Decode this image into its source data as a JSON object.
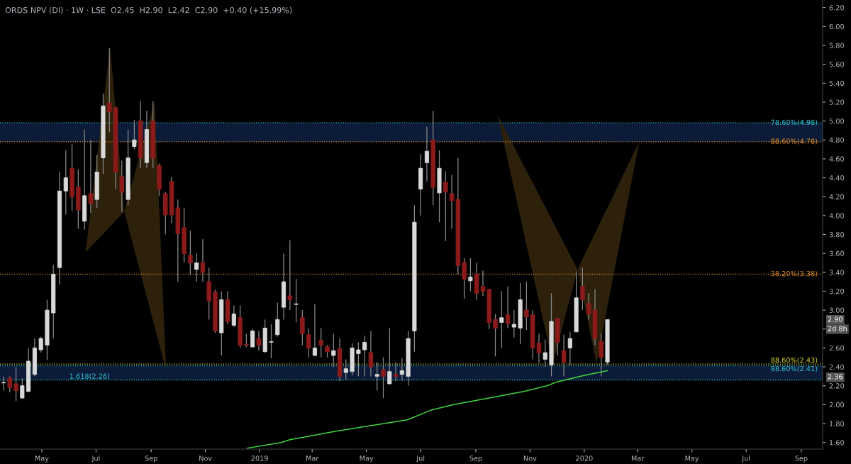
{
  "chart_data": {
    "type": "candlestick",
    "title": "ORDS NPV (DI) · 1W · LSE  O2.45  H2.90  L2.42  C2.90  +0.40 (+15.99%)",
    "xlim": [
      "2018-03-15",
      "2020-09-25"
    ],
    "ylim": [
      1.53,
      6.28
    ],
    "xticks": [
      {
        "value": "2018-05-01",
        "label": "May"
      },
      {
        "value": "2018-07-01",
        "label": "Jul"
      },
      {
        "value": "2018-09-01",
        "label": "Sep"
      },
      {
        "value": "2018-11-01",
        "label": "Nov"
      },
      {
        "value": "2019-01-01",
        "label": "2019"
      },
      {
        "value": "2019-03-01",
        "label": "Mar"
      },
      {
        "value": "2019-05-01",
        "label": "May"
      },
      {
        "value": "2019-07-01",
        "label": "Jul"
      },
      {
        "value": "2019-09-01",
        "label": "Sep"
      },
      {
        "value": "2019-11-01",
        "label": "Nov"
      },
      {
        "value": "2020-01-01",
        "label": "2020"
      },
      {
        "value": "2020-03-01",
        "label": "Mar"
      },
      {
        "value": "2020-05-01",
        "label": "May"
      },
      {
        "value": "2020-07-01",
        "label": "Jul"
      },
      {
        "value": "2020-09-01",
        "label": "Sep"
      }
    ],
    "yticks": [
      {
        "value": 1.6,
        "label": "1.60"
      },
      {
        "value": 1.8,
        "label": "1.80"
      },
      {
        "value": 2.0,
        "label": "2.00"
      },
      {
        "value": 2.2,
        "label": "2.20"
      },
      {
        "value": 2.4,
        "label": "2.40"
      },
      {
        "value": 2.6,
        "label": "2.60"
      },
      {
        "value": 2.8,
        "label": null
      },
      {
        "value": 3.0,
        "label": "3.00"
      },
      {
        "value": 3.2,
        "label": "3.20"
      },
      {
        "value": 3.4,
        "label": "3.40"
      },
      {
        "value": 3.6,
        "label": "3.60"
      },
      {
        "value": 3.8,
        "label": "3.80"
      },
      {
        "value": 4.0,
        "label": "4.00"
      },
      {
        "value": 4.2,
        "label": "4.20"
      },
      {
        "value": 4.4,
        "label": "4.40"
      },
      {
        "value": 4.6,
        "label": "4.60"
      },
      {
        "value": 4.8,
        "label": "4.80"
      },
      {
        "value": 5.0,
        "label": "5.00"
      },
      {
        "value": 5.2,
        "label": "5.20"
      },
      {
        "value": 5.4,
        "label": "5.40"
      },
      {
        "value": 5.6,
        "label": "5.60"
      },
      {
        "value": 5.8,
        "label": "5.80"
      },
      {
        "value": 6.0,
        "label": "6.00"
      },
      {
        "value": 6.2,
        "label": "6.20"
      }
    ],
    "series": [
      {
        "type": "candlestick",
        "x": [
          "2018-03-19",
          "2018-03-26",
          "2018-04-02",
          "2018-04-09",
          "2018-04-16",
          "2018-04-23",
          "2018-04-30",
          "2018-05-07",
          "2018-05-14",
          "2018-05-21",
          "2018-05-28",
          "2018-06-04",
          "2018-06-11",
          "2018-06-18",
          "2018-06-25",
          "2018-07-02",
          "2018-07-09",
          "2018-07-16",
          "2018-07-23",
          "2018-07-30",
          "2018-08-06",
          "2018-08-13",
          "2018-08-20",
          "2018-08-27",
          "2018-09-03",
          "2018-09-10",
          "2018-09-17",
          "2018-09-24",
          "2018-10-01",
          "2018-10-08",
          "2018-10-15",
          "2018-10-22",
          "2018-10-29",
          "2018-11-05",
          "2018-11-12",
          "2018-11-19",
          "2018-11-26",
          "2018-12-03",
          "2018-12-10",
          "2018-12-17",
          "2018-12-24",
          "2018-12-31",
          "2019-01-07",
          "2019-01-14",
          "2019-01-21",
          "2019-01-28",
          "2019-02-04",
          "2019-02-11",
          "2019-02-18",
          "2019-02-25",
          "2019-03-04",
          "2019-03-11",
          "2019-03-18",
          "2019-03-25",
          "2019-04-01",
          "2019-04-08",
          "2019-04-15",
          "2019-04-22",
          "2019-04-29",
          "2019-05-06",
          "2019-05-13",
          "2019-05-20",
          "2019-05-27",
          "2019-06-03",
          "2019-06-10",
          "2019-06-17",
          "2019-06-24",
          "2019-07-01",
          "2019-07-08",
          "2019-07-15",
          "2019-07-22",
          "2019-07-29",
          "2019-08-05",
          "2019-08-12",
          "2019-08-19",
          "2019-08-26",
          "2019-09-02",
          "2019-09-09",
          "2019-09-16",
          "2019-09-23",
          "2019-09-30",
          "2019-10-07",
          "2019-10-14",
          "2019-10-21",
          "2019-10-28",
          "2019-11-04",
          "2019-11-11",
          "2019-11-18",
          "2019-11-25",
          "2019-12-02",
          "2019-12-09",
          "2019-12-16",
          "2019-12-23",
          "2019-12-30",
          "2020-01-06",
          "2020-01-13",
          "2020-01-20",
          "2020-01-27"
        ],
        "ohlc": [
          [
            2.23,
            2.3,
            2.15,
            2.23
          ],
          [
            2.28,
            2.3,
            2.13,
            2.18
          ],
          [
            2.22,
            2.4,
            2.04,
            2.15
          ],
          [
            2.07,
            2.28,
            2.06,
            2.2
          ],
          [
            2.14,
            2.6,
            2.13,
            2.46
          ],
          [
            2.32,
            2.7,
            2.3,
            2.6
          ],
          [
            2.58,
            2.72,
            2.55,
            2.7
          ],
          [
            2.63,
            3.11,
            2.47,
            3.0
          ],
          [
            2.97,
            3.48,
            2.7,
            3.38
          ],
          [
            3.45,
            4.46,
            3.27,
            4.26
          ],
          [
            4.26,
            4.69,
            4.01,
            4.4
          ],
          [
            4.5,
            4.76,
            4.05,
            4.2
          ],
          [
            4.3,
            4.49,
            3.86,
            4.06
          ],
          [
            3.94,
            4.91,
            3.85,
            4.21
          ],
          [
            4.23,
            4.8,
            4.03,
            4.13
          ],
          [
            4.17,
            4.64,
            4.08,
            4.46
          ],
          [
            4.61,
            5.29,
            4.44,
            5.16
          ],
          [
            5.19,
            5.77,
            4.88,
            5.1
          ],
          [
            5.14,
            5.15,
            4.28,
            4.46
          ],
          [
            4.41,
            4.58,
            4.04,
            4.25
          ],
          [
            4.17,
            4.91,
            4.11,
            4.61
          ],
          [
            4.73,
            5.01,
            4.7,
            4.8
          ],
          [
            5.0,
            5.21,
            4.5,
            4.61
          ],
          [
            4.56,
            5.11,
            4.5,
            4.91
          ],
          [
            5.0,
            5.21,
            4.5,
            4.61
          ],
          [
            4.53,
            4.55,
            4.21,
            4.28
          ],
          [
            4.23,
            4.25,
            3.8,
            4.01
          ],
          [
            4.36,
            4.41,
            3.92,
            4.01
          ],
          [
            4.08,
            4.17,
            3.3,
            3.81
          ],
          [
            3.87,
            4.08,
            3.5,
            3.6
          ],
          [
            3.58,
            3.84,
            3.37,
            3.5
          ],
          [
            3.43,
            3.6,
            3.3,
            3.5
          ],
          [
            3.5,
            3.75,
            3.3,
            3.4
          ],
          [
            3.3,
            3.45,
            2.9,
            3.1
          ],
          [
            3.19,
            3.22,
            2.76,
            2.78
          ],
          [
            2.76,
            3.2,
            2.52,
            3.11
          ],
          [
            3.11,
            3.2,
            2.85,
            2.88
          ],
          [
            2.84,
            3.05,
            2.82,
            2.96
          ],
          [
            2.92,
            3.05,
            2.6,
            2.63
          ],
          [
            2.64,
            2.75,
            2.61,
            2.63
          ],
          [
            2.61,
            2.8,
            2.61,
            2.78
          ],
          [
            2.7,
            2.78,
            2.57,
            2.63
          ],
          [
            2.56,
            2.9,
            2.55,
            2.81
          ],
          [
            2.66,
            2.85,
            2.49,
            2.66
          ],
          [
            2.74,
            3.08,
            2.72,
            2.9
          ],
          [
            3.03,
            3.6,
            2.9,
            3.3
          ],
          [
            3.15,
            3.74,
            3.0,
            3.11
          ],
          [
            3.06,
            3.33,
            2.87,
            3.06
          ],
          [
            2.92,
            3.0,
            2.63,
            2.75
          ],
          [
            2.74,
            2.81,
            2.5,
            2.6
          ],
          [
            2.52,
            3.06,
            2.52,
            2.6
          ],
          [
            2.68,
            2.81,
            2.5,
            2.63
          ],
          [
            2.61,
            2.63,
            2.5,
            2.56
          ],
          [
            2.52,
            2.75,
            2.4,
            2.57
          ],
          [
            2.59,
            2.7,
            2.25,
            2.3
          ],
          [
            2.34,
            2.48,
            2.27,
            2.38
          ],
          [
            2.35,
            2.65,
            2.31,
            2.6
          ],
          [
            2.54,
            2.66,
            2.3,
            2.58
          ],
          [
            2.58,
            2.73,
            2.3,
            2.66
          ],
          [
            2.55,
            2.78,
            2.3,
            2.4
          ],
          [
            2.3,
            2.45,
            2.15,
            2.32
          ],
          [
            2.37,
            2.5,
            2.07,
            2.3
          ],
          [
            2.22,
            2.81,
            2.22,
            2.35
          ],
          [
            2.32,
            2.45,
            2.25,
            2.3
          ],
          [
            2.32,
            2.49,
            2.25,
            2.36
          ],
          [
            2.3,
            2.78,
            2.2,
            2.7
          ],
          [
            2.78,
            4.11,
            2.56,
            3.93
          ],
          [
            4.28,
            4.65,
            4.0,
            4.5
          ],
          [
            4.56,
            4.94,
            4.36,
            4.68
          ],
          [
            4.8,
            5.11,
            4.11,
            4.3
          ],
          [
            4.24,
            4.69,
            3.93,
            4.5
          ],
          [
            4.35,
            4.47,
            3.73,
            4.25
          ],
          [
            4.23,
            4.43,
            3.86,
            4.16
          ],
          [
            4.17,
            4.61,
            3.38,
            3.47
          ],
          [
            3.5,
            3.55,
            3.12,
            3.33
          ],
          [
            3.31,
            3.55,
            3.2,
            3.35
          ],
          [
            3.38,
            3.5,
            3.11,
            3.18
          ],
          [
            3.25,
            3.42,
            3.15,
            3.2
          ],
          [
            3.22,
            3.22,
            2.8,
            2.87
          ],
          [
            2.9,
            2.96,
            2.51,
            2.81
          ],
          [
            2.87,
            3.2,
            2.6,
            2.92
          ],
          [
            2.95,
            3.25,
            2.81,
            2.86
          ],
          [
            2.82,
            3.0,
            2.71,
            2.85
          ],
          [
            2.81,
            3.29,
            2.64,
            3.11
          ],
          [
            3.0,
            3.3,
            2.79,
            2.93
          ],
          [
            2.95,
            3.0,
            2.48,
            2.6
          ],
          [
            2.65,
            2.75,
            2.44,
            2.55
          ],
          [
            2.48,
            2.69,
            2.4,
            2.55
          ],
          [
            2.42,
            3.18,
            2.3,
            2.88
          ],
          [
            2.91,
            2.91,
            2.52,
            2.66
          ],
          [
            2.57,
            2.74,
            2.3,
            2.45
          ],
          [
            2.6,
            2.77,
            2.42,
            2.7
          ],
          [
            2.77,
            3.41,
            2.77,
            3.13
          ],
          [
            3.25,
            3.45,
            3.0,
            3.11
          ],
          [
            3.07,
            3.18,
            2.9,
            2.96
          ],
          [
            3.0,
            3.22,
            2.63,
            2.7
          ],
          [
            2.67,
            2.75,
            2.3,
            2.5
          ],
          [
            2.45,
            2.9,
            2.42,
            2.9
          ]
        ]
      },
      {
        "type": "line",
        "color": "#3fd43f",
        "x": [
          "2018-12-18",
          "2019-01-25",
          "2019-02-04",
          "2019-03-28",
          "2019-05-07",
          "2019-06-16",
          "2019-07-12",
          "2019-08-07",
          "2019-09-16",
          "2019-10-25",
          "2019-11-20",
          "2019-12-01",
          "2019-12-27",
          "2020-01-27"
        ],
        "values": [
          1.54,
          1.6,
          1.63,
          1.72,
          1.78,
          1.84,
          1.94,
          2.0,
          2.07,
          2.14,
          2.2,
          2.24,
          2.3,
          2.36
        ]
      }
    ],
    "bands": [
      {
        "axis": "y",
        "from": 4.78,
        "to": 4.98,
        "color": "#0c1b38"
      },
      {
        "axis": "y",
        "from": 2.26,
        "to": 2.41,
        "color": "#0c1b38"
      }
    ],
    "ref_lines": [
      {
        "axis": "y",
        "value": 4.98,
        "label": "78.60%(4.98)",
        "color": "#2ec4d6",
        "line_style": "dotted"
      },
      {
        "axis": "y",
        "value": 4.78,
        "label": "88.60%(4.78)",
        "color": "#e08a2a",
        "line_style": "dotted"
      },
      {
        "axis": "y",
        "value": 3.38,
        "label": "38.20%(3.38)",
        "color": "#e08a2a",
        "line_style": "dotted"
      },
      {
        "axis": "y",
        "value": 2.43,
        "label": "88.60%(2.43)",
        "color": "#d8d83a",
        "line_style": "dotted"
      },
      {
        "axis": "y",
        "value": 2.41,
        "label": "88.60%(2.41)",
        "color": "#2ec4d6",
        "line_style": "dotted"
      },
      {
        "axis": "y",
        "value": 2.26,
        "color": "#2ec4d6",
        "line_style": "dotted"
      }
    ],
    "annotations": [
      {
        "text": "1.618(2.26)",
        "x": "2018-06-01",
        "y": 2.26
      },
      "2.90",
      "2d 8h",
      "2.36"
    ]
  }
}
